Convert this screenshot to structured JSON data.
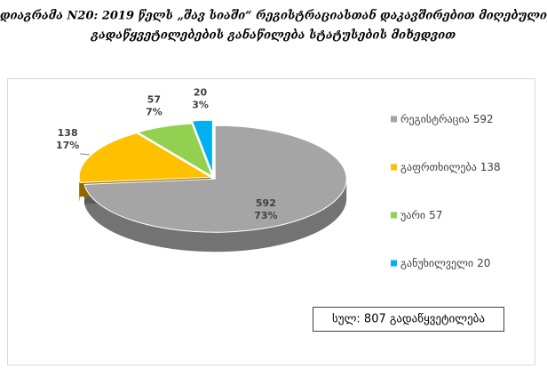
{
  "chart_data": {
    "type": "pie3d",
    "title_lines": [
      "დიაგრამა N20: 2019 წელს „შავ სიაში“ რეგისტრაციასთან დაკავშირებით მიღებული",
      "გადაწყვეტილებების განაწილება სტატუსების მიხედვით"
    ],
    "categories": [
      "რეგისტრაცია",
      "გაფრთხილება",
      "უარი",
      "განუხილველი"
    ],
    "values": [
      592,
      138,
      57,
      20
    ],
    "percent_labels": [
      "73%",
      "17%",
      "7%",
      "3%"
    ],
    "colors": [
      "#a5a5a5",
      "#ffc000",
      "#92d050",
      "#00b0f0"
    ],
    "legend": "right",
    "total_label": "სულ: 807 გადაწყვეტილება"
  }
}
